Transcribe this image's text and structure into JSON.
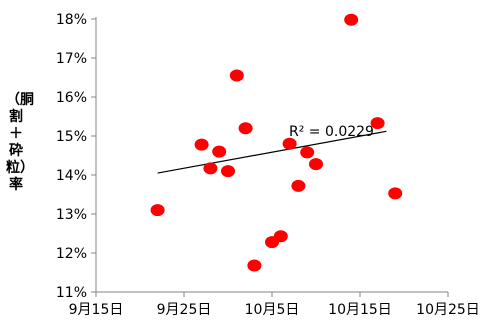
{
  "chart_data": {
    "type": "scatter",
    "title": "",
    "xlabel": "",
    "ylabel": "（胴割＋砕粒）率",
    "x_ticks": [
      "9月15日",
      "9月25日",
      "10月5日",
      "10月15日",
      "10月25日"
    ],
    "x_range": [
      "09-15",
      "10-25"
    ],
    "y_ticks": [
      "11%",
      "12%",
      "13%",
      "14%",
      "15%",
      "16%",
      "17%",
      "18%"
    ],
    "ylim": [
      11,
      18
    ],
    "grid": false,
    "legend": "none",
    "point_color": "#ff0000",
    "series": [
      {
        "points": [
          {
            "x": "09-22",
            "y": 13.1
          },
          {
            "x": "09-27",
            "y": 14.78
          },
          {
            "x": "09-28",
            "y": 14.17
          },
          {
            "x": "09-29",
            "y": 14.6
          },
          {
            "x": "09-30",
            "y": 14.1
          },
          {
            "x": "10-01",
            "y": 16.55
          },
          {
            "x": "10-02",
            "y": 15.2
          },
          {
            "x": "10-03",
            "y": 11.68
          },
          {
            "x": "10-05",
            "y": 12.28
          },
          {
            "x": "10-06",
            "y": 12.43
          },
          {
            "x": "10-07",
            "y": 14.8
          },
          {
            "x": "10-08",
            "y": 13.72
          },
          {
            "x": "10-09",
            "y": 14.58
          },
          {
            "x": "10-10",
            "y": 14.28
          },
          {
            "x": "10-14",
            "y": 17.98
          },
          {
            "x": "10-17",
            "y": 15.33
          },
          {
            "x": "10-19",
            "y": 13.53
          }
        ]
      }
    ],
    "trendline": {
      "type": "linear",
      "color": "#000000",
      "label": "R² = 0.0229",
      "start": {
        "x": "09-22",
        "y": 14.05
      },
      "end": {
        "x": "10-18",
        "y": 15.12
      }
    }
  }
}
